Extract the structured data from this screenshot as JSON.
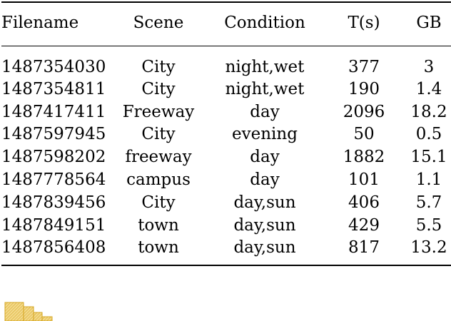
{
  "table": {
    "headers": [
      "Filename",
      "Scene",
      "Condition",
      "T(s)",
      "GB"
    ],
    "rows": [
      [
        "1487354030",
        "City",
        "night,wet",
        "377",
        "3"
      ],
      [
        "1487354811",
        "City",
        "night,wet",
        "190",
        "1.4"
      ],
      [
        "1487417411",
        "Freeway",
        "day",
        "2096",
        "18.2"
      ],
      [
        "1487597945",
        "City",
        "evening",
        "50",
        "0.5"
      ],
      [
        "1487598202",
        "freeway",
        "day",
        "1882",
        "15.1"
      ],
      [
        "1487778564",
        "campus",
        "day",
        "101",
        "1.1"
      ],
      [
        "1487839456",
        "City",
        "day,sun",
        "406",
        "5.7"
      ],
      [
        "1487849151",
        "town",
        "day,sun",
        "429",
        "5.5"
      ],
      [
        "1487856408",
        "town",
        "day,sun",
        "817",
        "13.2"
      ]
    ]
  },
  "colors": {
    "artifact_fill": "#f3d98a",
    "artifact_stroke": "#d4a520"
  }
}
